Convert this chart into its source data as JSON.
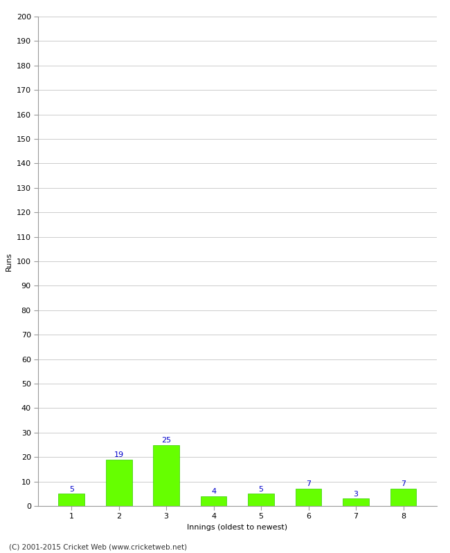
{
  "xlabel": "Innings (oldest to newest)",
  "ylabel": "Runs",
  "categories": [
    "1",
    "2",
    "3",
    "4",
    "5",
    "6",
    "7",
    "8"
  ],
  "values": [
    5,
    19,
    25,
    4,
    5,
    7,
    3,
    7
  ],
  "bar_color": "#66ff00",
  "bar_edge_color": "#33cc00",
  "label_color": "#0000cc",
  "ylim": [
    0,
    200
  ],
  "yticks": [
    0,
    10,
    20,
    30,
    40,
    50,
    60,
    70,
    80,
    90,
    100,
    110,
    120,
    130,
    140,
    150,
    160,
    170,
    180,
    190,
    200
  ],
  "background_color": "#ffffff",
  "grid_color": "#cccccc",
  "footer": "(C) 2001-2015 Cricket Web (www.cricketweb.net)",
  "label_fontsize": 8,
  "axis_fontsize": 8,
  "ylabel_fontsize": 8,
  "xlabel_fontsize": 8,
  "footer_fontsize": 7.5
}
